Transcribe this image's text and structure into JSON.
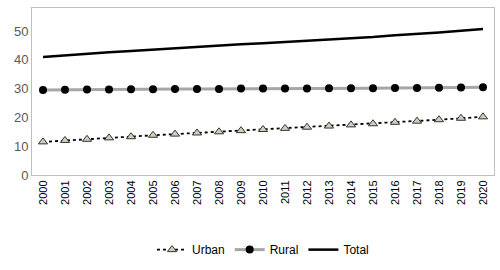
{
  "chart_data": {
    "type": "line",
    "categories": [
      "2000",
      "2001",
      "2002",
      "2003",
      "2004",
      "2005",
      "2006",
      "2007",
      "2008",
      "2009",
      "2010",
      "2011",
      "2012",
      "2013",
      "2014",
      "2015",
      "2016",
      "2017",
      "2018",
      "2019",
      "2020"
    ],
    "series": [
      {
        "name": "Urban",
        "color": "#c6d4bd",
        "marker": "triangle-up",
        "line_style": "dot",
        "values": [
          11.5,
          12.0,
          12.4,
          12.9,
          13.3,
          13.8,
          14.2,
          14.6,
          15.0,
          15.4,
          15.8,
          16.2,
          16.6,
          17.0,
          17.4,
          17.8,
          18.3,
          18.7,
          19.2,
          19.7,
          20.2
        ]
      },
      {
        "name": "Rural",
        "color": "#a6a6a6",
        "marker": "circle",
        "line_style": "solid",
        "values": [
          29.5,
          29.6,
          29.7,
          29.7,
          29.8,
          29.8,
          29.9,
          29.9,
          29.9,
          30.0,
          30.0,
          30.0,
          30.0,
          30.1,
          30.1,
          30.1,
          30.2,
          30.2,
          30.3,
          30.4,
          30.5
        ]
      },
      {
        "name": "Total",
        "color": "#000000",
        "marker": "none",
        "line_style": "solid",
        "values": [
          41.0,
          41.6,
          42.1,
          42.6,
          43.1,
          43.6,
          44.1,
          44.5,
          44.9,
          45.4,
          45.8,
          46.2,
          46.6,
          47.1,
          47.5,
          47.9,
          48.5,
          48.9,
          49.5,
          50.1,
          50.7
        ]
      }
    ],
    "ylim": [
      0,
      58
    ],
    "yticks": [
      0,
      10,
      20,
      30,
      40,
      50
    ],
    "grid": false,
    "legend": "bottom"
  }
}
